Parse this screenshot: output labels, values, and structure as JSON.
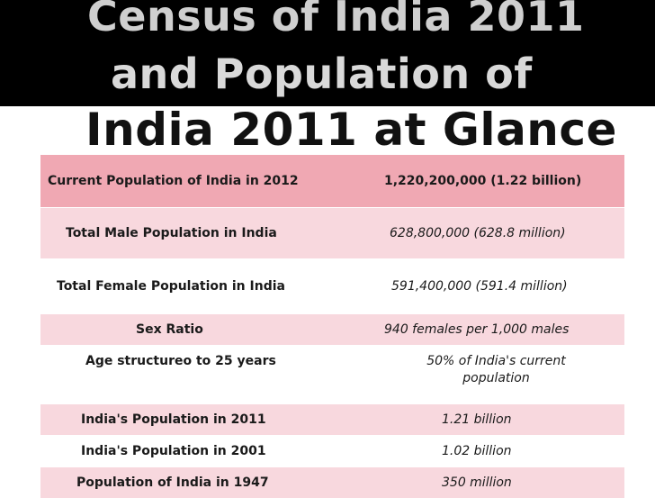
{
  "title": {
    "line1": "Census of India 2011",
    "line2": "and Population of",
    "line3": "India 2011 at Glance"
  },
  "table": {
    "rows": [
      {
        "label": "Current Population of India in 2012",
        "value": "1,220,200,000 (1.22 billion)"
      },
      {
        "label": "Total Male Population in India",
        "value": "628,800,000 (628.8 million)"
      },
      {
        "label": "Total Female Population in India",
        "value": "591,400,000 (591.4 million)"
      },
      {
        "label": "Sex Ratio",
        "value": "940 females per 1,000 males"
      },
      {
        "label": "Age structureo to 25 years",
        "value": "50% of India's current population"
      },
      {
        "label": "India's Population in 2011",
        "value": "1.21 billion"
      },
      {
        "label": "India's Population in 2001",
        "value": "1.02 billion"
      },
      {
        "label": "Population of India in 1947",
        "value": "350 million"
      }
    ]
  },
  "colors": {
    "header_band": "#000000",
    "row_pink": "#f0a8b3",
    "row_light_pink": "#f8d8de",
    "row_white": "#ffffff"
  }
}
